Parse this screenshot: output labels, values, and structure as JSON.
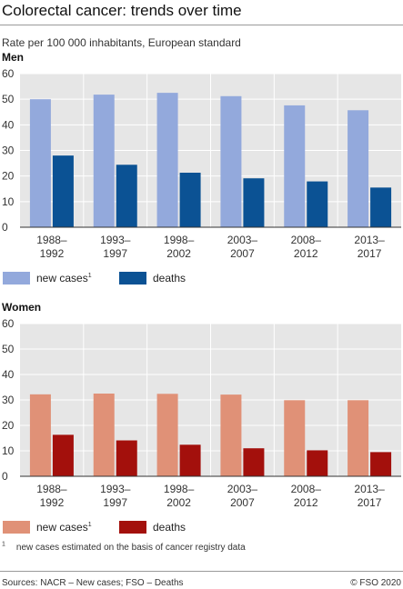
{
  "header": {
    "title": "Colorectal cancer: trends over time",
    "subtitle": "Rate per 100 000 inhabitants, European standard"
  },
  "footnote": {
    "mark": "1",
    "text": "new cases estimated on the basis of cancer registry data"
  },
  "footer": {
    "source": "Sources: NACR – New cases; FSO – Deaths",
    "copyright": "© FSO 2020"
  },
  "chart_data": [
    {
      "type": "bar",
      "panel": "Men",
      "categories": [
        "1988–\n1992",
        "1993–\n1997",
        "1998–\n2002",
        "2003–\n2007",
        "2008–\n2012",
        "2013–\n2017"
      ],
      "series": [
        {
          "name": "new cases",
          "name_superscript": "1",
          "color": "#93a9dc",
          "values": [
            50,
            51.8,
            52.5,
            51.2,
            47.6,
            45.7
          ]
        },
        {
          "name": "deaths",
          "color": "#0b5294",
          "values": [
            28,
            24.4,
            21.3,
            19.1,
            17.9,
            15.5
          ]
        }
      ],
      "ylim": [
        0,
        60
      ],
      "yticks": [
        0,
        10,
        20,
        30,
        40,
        50,
        60
      ],
      "grid": true,
      "legend": "bottom-left",
      "plot_background": "#e6e6e6"
    },
    {
      "type": "bar",
      "panel": "Women",
      "categories": [
        "1988–\n1992",
        "1993–\n1997",
        "1998–\n2002",
        "2003–\n2007",
        "2008–\n2012",
        "2013–\n2017"
      ],
      "series": [
        {
          "name": "new cases",
          "name_superscript": "1",
          "color": "#e09177",
          "values": [
            32.2,
            32.5,
            32.4,
            32.1,
            29.9,
            29.9
          ]
        },
        {
          "name": "deaths",
          "color": "#a3100c",
          "values": [
            16.3,
            14.1,
            12.4,
            11,
            10.2,
            9.5
          ]
        }
      ],
      "ylim": [
        0,
        60
      ],
      "yticks": [
        0,
        10,
        20,
        30,
        40,
        50,
        60
      ],
      "grid": true,
      "legend": "bottom-left",
      "plot_background": "#e6e6e6"
    }
  ]
}
